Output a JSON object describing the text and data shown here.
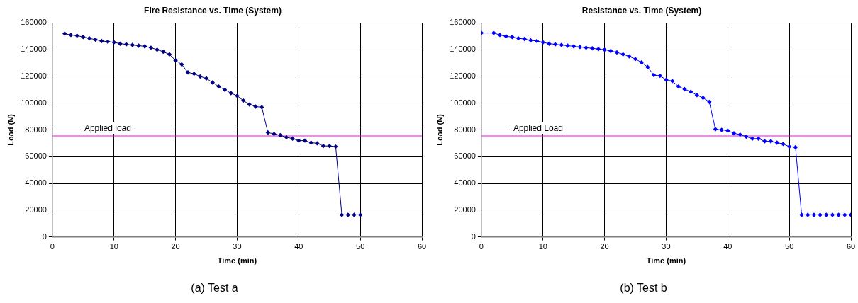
{
  "chart_data": [
    {
      "type": "line",
      "title": "Fire Resistance vs. Time (System)",
      "xlabel": "Time (min)",
      "ylabel": "Load (N)",
      "marker": "diamond",
      "grid": true,
      "x": [
        2,
        3,
        4,
        5,
        6,
        7,
        8,
        9,
        10,
        11,
        12,
        13,
        14,
        15,
        16,
        17,
        18,
        19,
        20,
        21,
        22,
        23,
        24,
        25,
        26,
        27,
        28,
        29,
        30,
        31,
        32,
        33,
        34,
        35,
        36,
        37,
        38,
        39,
        40,
        41,
        42,
        43,
        44,
        45,
        46,
        47,
        48,
        49,
        50
      ],
      "series": [
        {
          "color": "#000080",
          "values": [
            152000,
            151000,
            150500,
            149500,
            148500,
            147500,
            146500,
            146000,
            145500,
            144500,
            144000,
            143500,
            143000,
            142500,
            141500,
            140000,
            138500,
            136500,
            132000,
            129000,
            123000,
            122000,
            120000,
            118500,
            115500,
            112500,
            110000,
            107500,
            105500,
            102000,
            99000,
            97500,
            97000,
            78000,
            77000,
            76000,
            74500,
            73500,
            72000,
            72000,
            70500,
            70000,
            68000,
            68000,
            67500,
            16500,
            16500,
            16500,
            16500
          ]
        }
      ],
      "xlim": [
        0,
        60
      ],
      "xticks": [
        0,
        10,
        20,
        30,
        40,
        50,
        60
      ],
      "ylim": [
        0,
        160000
      ],
      "yticks": [
        0,
        20000,
        40000,
        60000,
        80000,
        100000,
        120000,
        140000,
        160000
      ],
      "ref_lines": [
        {
          "axis": "y",
          "value": 75500,
          "label": "Applied load",
          "color": "#ff00ff"
        }
      ],
      "annotations": [
        "(a) Test a"
      ]
    },
    {
      "type": "line",
      "title": "Resistance vs. Time (System)",
      "xlabel": "Time (min)",
      "ylabel": "Load (N)",
      "marker": "diamond",
      "grid": true,
      "x": [
        0,
        2,
        3,
        4,
        5,
        6,
        7,
        8,
        9,
        10,
        11,
        12,
        13,
        14,
        15,
        16,
        17,
        18,
        19,
        20,
        21,
        22,
        23,
        24,
        25,
        26,
        27,
        28,
        29,
        30,
        31,
        32,
        33,
        34,
        35,
        36,
        37,
        38,
        39,
        40,
        41,
        42,
        43,
        44,
        45,
        46,
        47,
        48,
        49,
        50,
        51,
        52,
        53,
        54,
        55,
        56,
        57,
        58,
        59,
        60
      ],
      "series": [
        {
          "color": "#0000ff",
          "values": [
            152500,
            152500,
            151000,
            150000,
            149500,
            148500,
            148000,
            147000,
            146500,
            145500,
            144500,
            144000,
            143500,
            143000,
            142500,
            142000,
            141500,
            141000,
            140500,
            140000,
            139000,
            138000,
            136500,
            135000,
            133000,
            130500,
            127000,
            121000,
            120500,
            117500,
            116500,
            112500,
            110500,
            108500,
            106000,
            104000,
            101000,
            80500,
            80000,
            79500,
            77500,
            76500,
            75000,
            73500,
            73500,
            71500,
            71500,
            70500,
            69500,
            67500,
            67000,
            16500,
            16500,
            16500,
            16500,
            16500,
            16500,
            16500,
            16500,
            16500
          ]
        }
      ],
      "xlim": [
        0,
        60
      ],
      "xticks": [
        0,
        10,
        20,
        30,
        40,
        50,
        60
      ],
      "ylim": [
        0,
        160000
      ],
      "yticks": [
        0,
        20000,
        40000,
        60000,
        80000,
        100000,
        120000,
        140000,
        160000
      ],
      "ref_lines": [
        {
          "axis": "y",
          "value": 75500,
          "label": "Applied Load",
          "color": "#ff00ff"
        }
      ],
      "annotations": [
        "(b) Test b"
      ]
    }
  ]
}
